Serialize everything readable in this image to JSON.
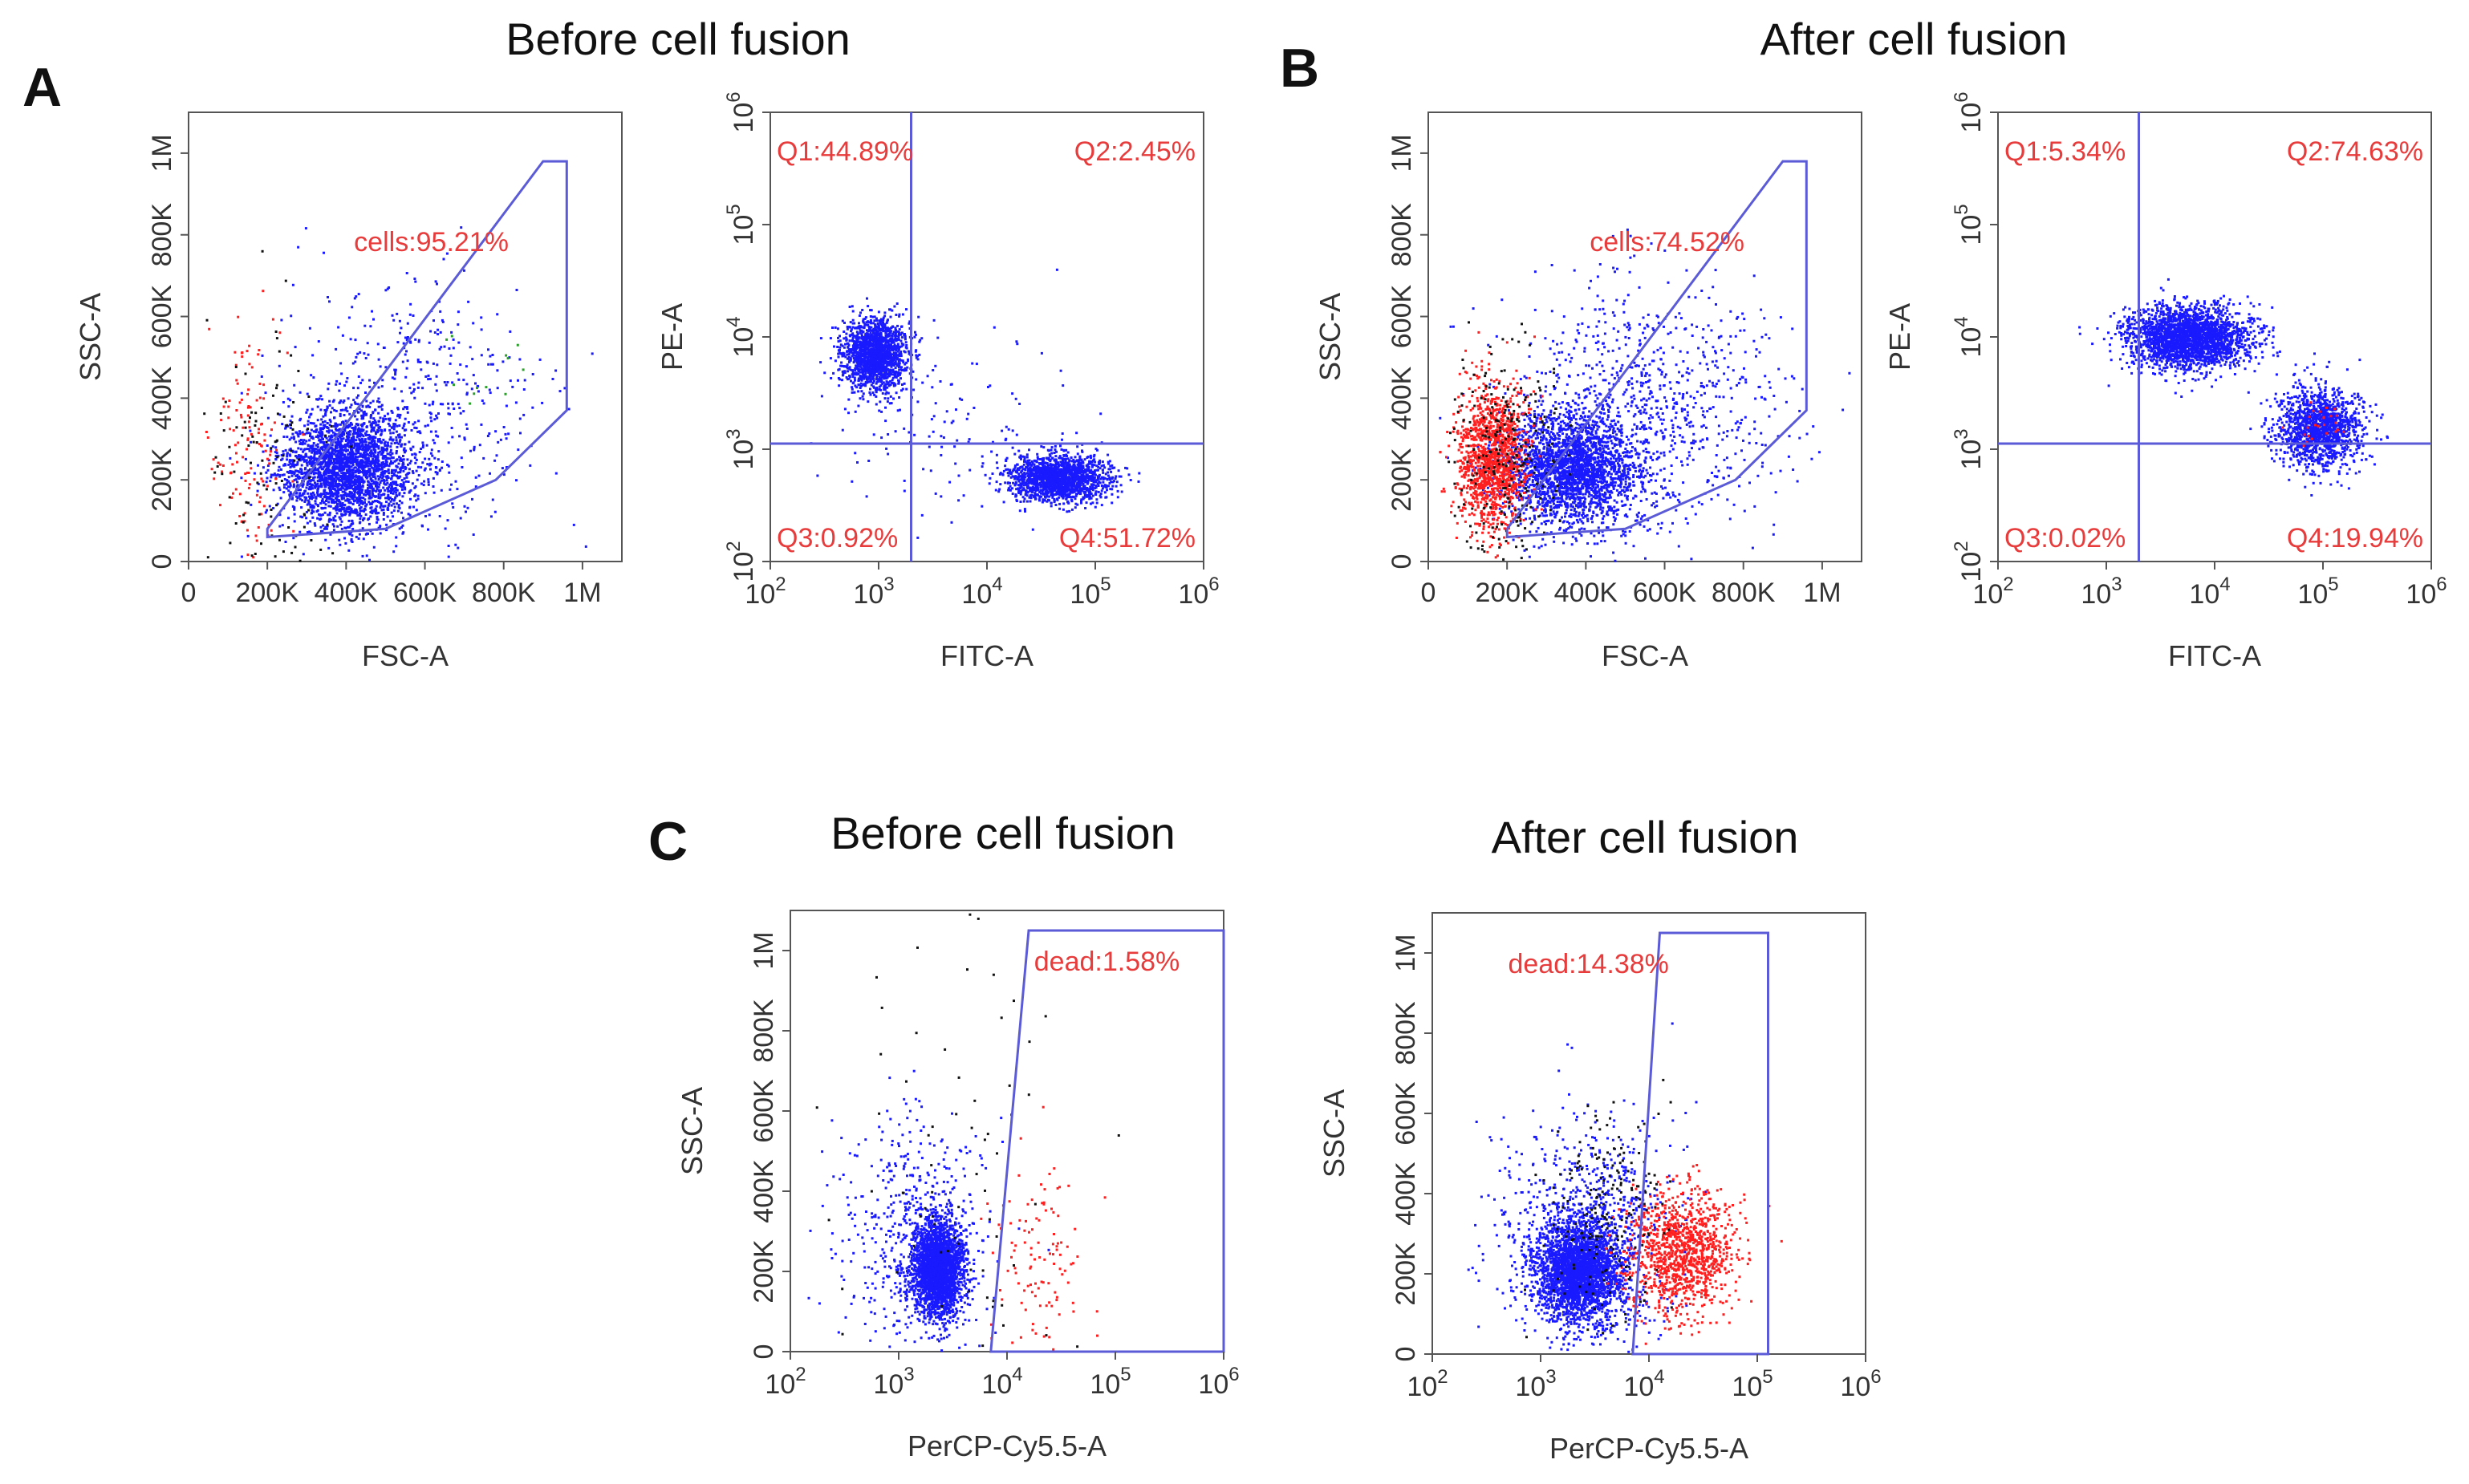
{
  "colors": {
    "gate": "#5b5bd8",
    "label": "#e83b3b",
    "blue": "#1a1aff",
    "red": "#ff1f1f",
    "black": "#111111",
    "green": "#2aa02a"
  },
  "panels": [
    {
      "id": "A",
      "letter": "A",
      "title": "Before cell fusion"
    },
    {
      "id": "B",
      "letter": "B",
      "title": "After cell fusion"
    },
    {
      "id": "C",
      "letter": "C",
      "titles": [
        "Before cell fusion",
        "After cell fusion"
      ]
    }
  ],
  "chart_data": [
    {
      "id": "A1",
      "type": "scatter",
      "panel": "A",
      "xlabel": "FSC-A",
      "ylabel": "SSC-A",
      "xscale": "linear",
      "yscale": "linear",
      "xlim": [
        0,
        1100000
      ],
      "ylim": [
        0,
        1100000
      ],
      "xticks": [
        0,
        200000,
        400000,
        600000,
        800000,
        1000000
      ],
      "xticklabels": [
        "0",
        "200K",
        "400K",
        "600K",
        "800K",
        "1M"
      ],
      "yticks": [
        0,
        200000,
        400000,
        600000,
        800000,
        1000000
      ],
      "yticklabels": [
        "0",
        "200K",
        "400K",
        "600K",
        "800K",
        "1M"
      ],
      "gate_polygon": [
        [
          200000,
          60000
        ],
        [
          500000,
          80000
        ],
        [
          780000,
          200000
        ],
        [
          960000,
          370000
        ],
        [
          960000,
          980000
        ],
        [
          900000,
          980000
        ],
        [
          200000,
          80000
        ]
      ],
      "gate_labels": [
        {
          "text": "cells:95.21%",
          "x": 420000,
          "y": 760000
        }
      ],
      "clusters": [
        {
          "name": "main",
          "color": "#1a1aff",
          "count": 2600,
          "cx": 400000,
          "cy": 230000,
          "sx": 85000,
          "sy": 70000
        },
        {
          "name": "spread",
          "color": "#1a1aff",
          "count": 500,
          "cx": 560000,
          "cy": 380000,
          "sx": 160000,
          "sy": 150000
        },
        {
          "name": "debris-red",
          "color": "#ff1f1f",
          "count": 130,
          "cx": 150000,
          "cy": 280000,
          "sx": 50000,
          "sy": 150000
        },
        {
          "name": "debris-black",
          "color": "#111111",
          "count": 120,
          "cx": 200000,
          "cy": 220000,
          "sx": 90000,
          "sy": 180000
        },
        {
          "name": "green",
          "color": "#2aa02a",
          "count": 12,
          "cx": 780000,
          "cy": 460000,
          "sx": 80000,
          "sy": 80000
        }
      ]
    },
    {
      "id": "A2",
      "type": "scatter",
      "panel": "A",
      "xlabel": "FITC-A",
      "ylabel": "PE-A",
      "xscale": "log",
      "yscale": "log",
      "xlim": [
        2,
        6
      ],
      "ylim": [
        2,
        6
      ],
      "xtick_exponents": [
        "2",
        "3",
        "4",
        "5",
        "6"
      ],
      "ytick_exponents": [
        "2",
        "3",
        "4",
        "5",
        "6"
      ],
      "quadrant": {
        "x": 3.3,
        "y": 3.05
      },
      "quadrant_labels": [
        {
          "text": "Q1:44.89%",
          "pos": "top-left"
        },
        {
          "text": "Q2:2.45%",
          "pos": "top-right"
        },
        {
          "text": "Q3:0.92%",
          "pos": "bottom-left"
        },
        {
          "text": "Q4:51.72%",
          "pos": "bottom-right"
        }
      ],
      "clusters": [
        {
          "name": "q1",
          "color": "#1a1aff",
          "count": 1600,
          "cx": 2.95,
          "cy": 3.85,
          "sx": 0.15,
          "sy": 0.16
        },
        {
          "name": "q4",
          "color": "#1a1aff",
          "count": 1700,
          "cx": 4.65,
          "cy": 2.75,
          "sx": 0.22,
          "sy": 0.1
        },
        {
          "name": "scatter",
          "color": "#1a1aff",
          "count": 120,
          "cx": 3.6,
          "cy": 3.2,
          "sx": 0.5,
          "sy": 0.4
        }
      ]
    },
    {
      "id": "B1",
      "type": "scatter",
      "panel": "B",
      "xlabel": "FSC-A",
      "ylabel": "SSC-A",
      "xscale": "linear",
      "yscale": "linear",
      "xlim": [
        0,
        1100000
      ],
      "ylim": [
        0,
        1100000
      ],
      "xticks": [
        0,
        200000,
        400000,
        600000,
        800000,
        1000000
      ],
      "xticklabels": [
        "0",
        "200K",
        "400K",
        "600K",
        "800K",
        "1M"
      ],
      "yticks": [
        0,
        200000,
        400000,
        600000,
        800000,
        1000000
      ],
      "yticklabels": [
        "0",
        "200K",
        "400K",
        "600K",
        "800K",
        "1M"
      ],
      "gate_polygon": [
        [
          200000,
          60000
        ],
        [
          500000,
          80000
        ],
        [
          780000,
          200000
        ],
        [
          960000,
          370000
        ],
        [
          960000,
          980000
        ],
        [
          900000,
          980000
        ],
        [
          200000,
          80000
        ]
      ],
      "gate_labels": [
        {
          "text": "cells:74.52%",
          "x": 410000,
          "y": 760000
        }
      ],
      "clusters": [
        {
          "name": "main",
          "color": "#1a1aff",
          "count": 2400,
          "cx": 360000,
          "cy": 230000,
          "sx": 85000,
          "sy": 70000
        },
        {
          "name": "spread",
          "color": "#1a1aff",
          "count": 900,
          "cx": 560000,
          "cy": 380000,
          "sx": 170000,
          "sy": 160000
        },
        {
          "name": "debris-red",
          "color": "#ff1f1f",
          "count": 1300,
          "cx": 160000,
          "cy": 250000,
          "sx": 45000,
          "sy": 90000
        },
        {
          "name": "debris-black",
          "color": "#111111",
          "count": 250,
          "cx": 200000,
          "cy": 260000,
          "sx": 70000,
          "sy": 150000
        }
      ]
    },
    {
      "id": "B2",
      "type": "scatter",
      "panel": "B",
      "xlabel": "FITC-A",
      "ylabel": "PE-A",
      "xscale": "log",
      "yscale": "log",
      "xlim": [
        2,
        6
      ],
      "ylim": [
        2,
        6
      ],
      "xtick_exponents": [
        "2",
        "3",
        "4",
        "5",
        "6"
      ],
      "ytick_exponents": [
        "2",
        "3",
        "4",
        "5",
        "6"
      ],
      "quadrant": {
        "x": 3.3,
        "y": 3.05
      },
      "quadrant_labels": [
        {
          "text": "Q1:5.34%",
          "pos": "top-left"
        },
        {
          "text": "Q2:74.63%",
          "pos": "top-right"
        },
        {
          "text": "Q3:0.02%",
          "pos": "bottom-left"
        },
        {
          "text": "Q4:19.94%",
          "pos": "bottom-right"
        }
      ],
      "clusters": [
        {
          "name": "q2",
          "color": "#1a1aff",
          "count": 2400,
          "cx": 3.75,
          "cy": 4.0,
          "sx": 0.28,
          "sy": 0.14
        },
        {
          "name": "q4",
          "color": "#1a1aff",
          "count": 1400,
          "cx": 4.95,
          "cy": 3.2,
          "sx": 0.2,
          "sy": 0.18
        },
        {
          "name": "q4-red",
          "color": "#ff1f1f",
          "count": 25,
          "cx": 4.95,
          "cy": 3.25,
          "sx": 0.12,
          "sy": 0.1
        }
      ]
    },
    {
      "id": "C1",
      "type": "scatter",
      "panel": "C",
      "xlabel": "PerCP-Cy5.5-A",
      "ylabel": "SSC-A",
      "xscale": "log",
      "yscale": "linear",
      "xlim": [
        2,
        6
      ],
      "ylim": [
        0,
        1100000
      ],
      "xtick_exponents": [
        "2",
        "3",
        "4",
        "5",
        "6"
      ],
      "yticks": [
        0,
        200000,
        400000,
        600000,
        800000,
        1000000
      ],
      "yticklabels": [
        "0",
        "200K",
        "400K",
        "600K",
        "800K",
        "1M"
      ],
      "gate_polygon": [
        [
          3.85,
          0
        ],
        [
          6.0,
          0
        ],
        [
          6.0,
          1050000
        ],
        [
          4.2,
          1050000
        ]
      ],
      "gate_labels": [
        {
          "text": "dead:1.58%",
          "x": 4.25,
          "y": 950000
        }
      ],
      "clusters": [
        {
          "name": "live",
          "color": "#1a1aff",
          "count": 2400,
          "cx": 3.35,
          "cy": 210000,
          "sx": 0.12,
          "sy": 60000
        },
        {
          "name": "live-spread",
          "color": "#1a1aff",
          "count": 500,
          "cx": 3.1,
          "cy": 300000,
          "sx": 0.35,
          "sy": 150000
        },
        {
          "name": "dead",
          "color": "#ff1f1f",
          "count": 110,
          "cx": 4.3,
          "cy": 250000,
          "sx": 0.22,
          "sy": 120000
        },
        {
          "name": "black",
          "color": "#111111",
          "count": 80,
          "cx": 3.5,
          "cy": 400000,
          "sx": 0.5,
          "sy": 300000
        }
      ]
    },
    {
      "id": "C2",
      "type": "scatter",
      "panel": "C",
      "xlabel": "PerCP-Cy5.5-A",
      "ylabel": "SSC-A",
      "xscale": "log",
      "yscale": "linear",
      "xlim": [
        2,
        6
      ],
      "ylim": [
        0,
        1100000
      ],
      "xtick_exponents": [
        "2",
        "3",
        "4",
        "5",
        "6"
      ],
      "yticks": [
        0,
        200000,
        400000,
        600000,
        800000,
        1000000
      ],
      "yticklabels": [
        "0",
        "200K",
        "400K",
        "600K",
        "800K",
        "1M"
      ],
      "gate_polygon": [
        [
          3.85,
          0
        ],
        [
          5.1,
          0
        ],
        [
          5.1,
          1050000
        ],
        [
          4.1,
          1050000
        ]
      ],
      "gate_labels": [
        {
          "text": "dead:14.38%",
          "x": 2.7,
          "y": 950000
        }
      ],
      "clusters": [
        {
          "name": "live",
          "color": "#1a1aff",
          "count": 2600,
          "cx": 3.35,
          "cy": 210000,
          "sx": 0.2,
          "sy": 60000
        },
        {
          "name": "live-spread",
          "color": "#1a1aff",
          "count": 900,
          "cx": 3.4,
          "cy": 300000,
          "sx": 0.4,
          "sy": 150000
        },
        {
          "name": "dead",
          "color": "#ff1f1f",
          "count": 1100,
          "cx": 4.3,
          "cy": 250000,
          "sx": 0.25,
          "sy": 80000
        },
        {
          "name": "black",
          "color": "#111111",
          "count": 200,
          "cx": 3.6,
          "cy": 330000,
          "sx": 0.3,
          "sy": 150000
        }
      ]
    }
  ]
}
